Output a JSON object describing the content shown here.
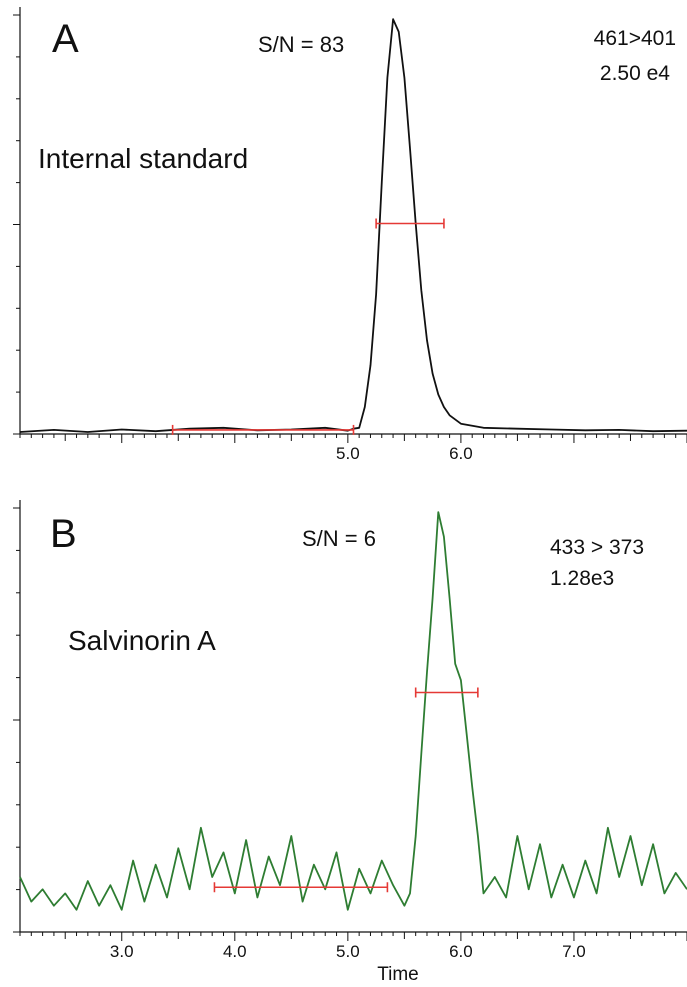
{
  "chart_data": [
    {
      "type": "line",
      "panel_label": "A",
      "compound": "Internal standard",
      "signal_to_noise": "S/N = 83",
      "transition": "461>401",
      "intensity": "2.50 e4",
      "xlabel": "",
      "ylabel": "",
      "x_ticks_labeled": [
        "5.0",
        "6.0"
      ],
      "xlim": [
        2.1,
        8.0
      ],
      "ylim": [
        0,
        1
      ],
      "color": "#111111",
      "series": [
        {
          "x": [
            2.1,
            2.4,
            2.7,
            3.0,
            3.3,
            3.6,
            3.9,
            4.2,
            4.5,
            4.8,
            5.0,
            5.05,
            5.1,
            5.15,
            5.2,
            5.25,
            5.3,
            5.35,
            5.4,
            5.45,
            5.5,
            5.55,
            5.6,
            5.65,
            5.7,
            5.75,
            5.8,
            5.85,
            5.9,
            6.0,
            6.2,
            6.5,
            6.8,
            7.1,
            7.4,
            7.7,
            8.0
          ],
          "values": [
            0.0,
            0.005,
            0.0,
            0.006,
            0.002,
            0.008,
            0.01,
            0.004,
            0.006,
            0.01,
            0.003,
            0.008,
            0.01,
            0.06,
            0.16,
            0.33,
            0.6,
            0.85,
            0.99,
            0.96,
            0.85,
            0.68,
            0.5,
            0.34,
            0.22,
            0.14,
            0.09,
            0.06,
            0.04,
            0.02,
            0.01,
            0.008,
            0.006,
            0.004,
            0.005,
            0.002,
            0.003
          ]
        }
      ],
      "noise_window": [
        3.45,
        5.05
      ],
      "peak_width_marker": [
        5.25,
        5.85
      ]
    },
    {
      "type": "line",
      "panel_label": "B",
      "compound": "Salvinorin A",
      "signal_to_noise": "S/N = 6",
      "transition": "433 > 373",
      "intensity": "1.28e3",
      "xlabel": "Time",
      "ylabel": "",
      "x_ticks_labeled": [
        "3.0",
        "4.0",
        "5.0",
        "6.0",
        "7.0"
      ],
      "xlim": [
        2.1,
        8.0
      ],
      "ylim": [
        0,
        1
      ],
      "color": "#2e7d32",
      "series": [
        {
          "x": [
            2.1,
            2.2,
            2.3,
            2.4,
            2.5,
            2.6,
            2.7,
            2.8,
            2.9,
            3.0,
            3.1,
            3.2,
            3.3,
            3.4,
            3.5,
            3.6,
            3.7,
            3.8,
            3.9,
            4.0,
            4.1,
            4.2,
            4.3,
            4.4,
            4.5,
            4.6,
            4.7,
            4.8,
            4.9,
            5.0,
            5.1,
            5.2,
            5.3,
            5.4,
            5.5,
            5.55,
            5.6,
            5.65,
            5.7,
            5.75,
            5.8,
            5.85,
            5.9,
            5.95,
            6.0,
            6.05,
            6.1,
            6.15,
            6.2,
            6.3,
            6.4,
            6.5,
            6.6,
            6.7,
            6.8,
            6.9,
            7.0,
            7.1,
            7.2,
            7.3,
            7.4,
            7.5,
            7.6,
            7.7,
            7.8,
            7.9,
            8.0
          ],
          "values": [
            0.1,
            0.04,
            0.07,
            0.03,
            0.06,
            0.02,
            0.09,
            0.03,
            0.08,
            0.02,
            0.14,
            0.04,
            0.13,
            0.05,
            0.17,
            0.07,
            0.22,
            0.1,
            0.16,
            0.06,
            0.19,
            0.05,
            0.15,
            0.08,
            0.2,
            0.04,
            0.13,
            0.07,
            0.16,
            0.02,
            0.12,
            0.06,
            0.14,
            0.08,
            0.03,
            0.06,
            0.2,
            0.4,
            0.6,
            0.78,
            0.99,
            0.93,
            0.78,
            0.62,
            0.58,
            0.45,
            0.32,
            0.2,
            0.06,
            0.1,
            0.05,
            0.2,
            0.07,
            0.18,
            0.05,
            0.13,
            0.05,
            0.14,
            0.06,
            0.22,
            0.1,
            0.2,
            0.08,
            0.18,
            0.06,
            0.11,
            0.07
          ]
        }
      ],
      "noise_window": [
        3.82,
        5.35
      ],
      "peak_width_marker": [
        5.6,
        6.15
      ]
    }
  ]
}
